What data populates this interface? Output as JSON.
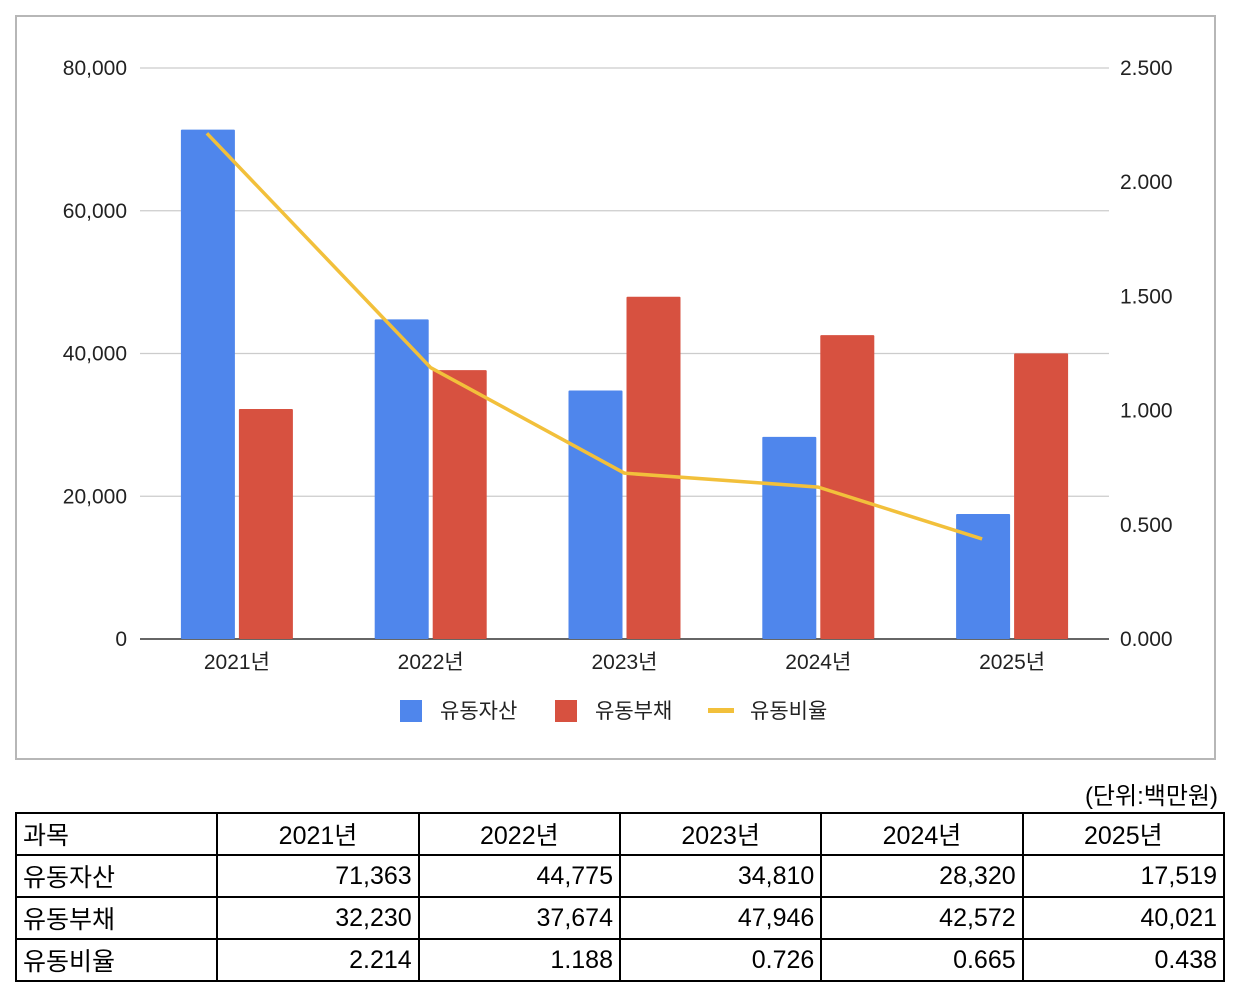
{
  "chart_data": {
    "type": "bar",
    "categories": [
      "2021년",
      "2022년",
      "2023년",
      "2024년",
      "2025년"
    ],
    "series": [
      {
        "name": "유동자산",
        "type": "bar",
        "axis": "left",
        "color": "#4f86ec",
        "values": [
          71363,
          44775,
          34810,
          28320,
          17519
        ]
      },
      {
        "name": "유동부채",
        "type": "bar",
        "axis": "left",
        "color": "#d75140",
        "values": [
          32230,
          37674,
          47946,
          42572,
          40021
        ]
      },
      {
        "name": "유동비율",
        "type": "line",
        "axis": "right",
        "color": "#f2c03b",
        "values": [
          2.214,
          1.188,
          0.726,
          0.665,
          0.438
        ]
      }
    ],
    "y_left": {
      "min": 0,
      "max": 80000,
      "ticks": [
        "0",
        "20,000",
        "40,000",
        "60,000",
        "80,000"
      ],
      "tick_values": [
        0,
        20000,
        40000,
        60000,
        80000
      ]
    },
    "y_right": {
      "min": 0,
      "max": 2.5,
      "ticks": [
        "0.000",
        "0.500",
        "1.000",
        "1.500",
        "2.000",
        "2.500"
      ],
      "tick_values": [
        0,
        0.5,
        1.0,
        1.5,
        2.0,
        2.5
      ]
    },
    "legend": "bottom",
    "grid": true
  },
  "unit_note": "(단위:백만원)",
  "table": {
    "headers": [
      "과목",
      "2021년",
      "2022년",
      "2023년",
      "2024년",
      "2025년"
    ],
    "rows": [
      [
        "유동자산",
        "71,363",
        "44,775",
        "34,810",
        "28,320",
        "17,519"
      ],
      [
        "유동부채",
        "32,230",
        "37,674",
        "47,946",
        "42,572",
        "40,021"
      ],
      [
        "유동비율",
        "2.214",
        "1.188",
        "0.726",
        "0.665",
        "0.438"
      ]
    ]
  }
}
